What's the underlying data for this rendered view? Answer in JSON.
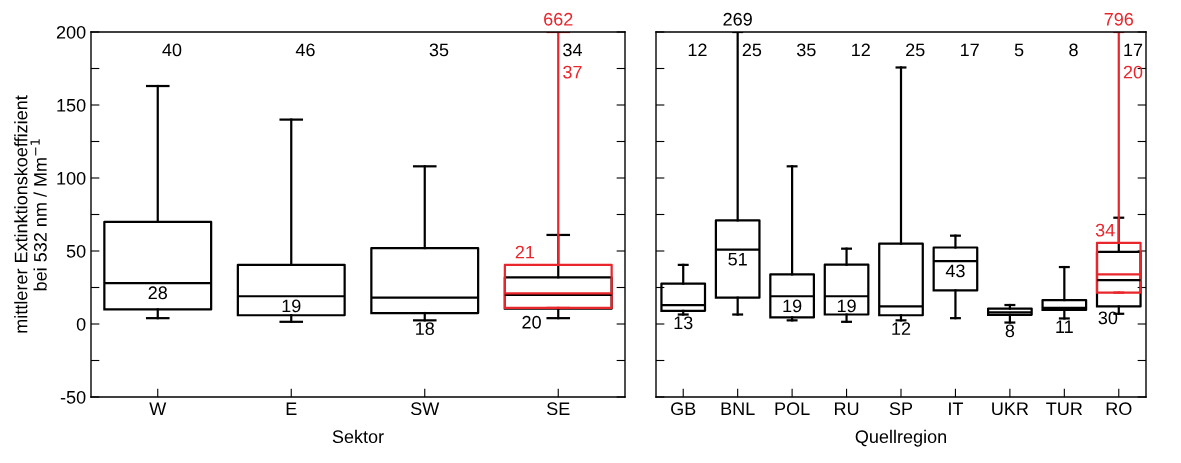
{
  "chart_data": [
    {
      "type": "box",
      "xlabel": "Sektor",
      "ylabel": "mittlerer Extinktionskoeffizient\nbei 532 nm / Mm$^{−1}$",
      "categories": [
        "W",
        "E",
        "SW",
        "SE"
      ],
      "ylim": [
        -50,
        200
      ],
      "yticks": [
        {
          "value": -50,
          "label": "-50"
        },
        {
          "value": -25,
          "label": null
        },
        0,
        {
          "value": 25,
          "label": null
        },
        50,
        {
          "value": 75,
          "label": null
        },
        100,
        {
          "value": 125,
          "label": null
        },
        150,
        {
          "value": 175,
          "label": null
        },
        200
      ],
      "grid": false,
      "series": [
        {
          "color": "#000000",
          "boxes": [
            {
              "low": 4,
              "q1": 10,
              "median": 28,
              "q3": 70,
              "high": 163
            },
            {
              "low": 1.5,
              "q1": 6,
              "median": 19,
              "q3": 40.5,
              "high": 140
            },
            {
              "low": 2.5,
              "q1": 7.5,
              "median": 18,
              "q3": 52,
              "high": 108
            },
            {
              "low": 4,
              "q1": 10.5,
              "median": 20,
              "q3": 32,
              "high": 61
            }
          ],
          "value_labels": [
            "40",
            "46",
            "35",
            "34"
          ]
        },
        {
          "color": "#e8262b",
          "boxes": [
            null,
            null,
            null,
            {
              "low": 11,
              "q1": 11,
              "median": 21,
              "q3": 40.5,
              "high": null
            }
          ],
          "value_labels": [
            null,
            null,
            null,
            "37"
          ]
        }
      ],
      "annotations": [
        {
          "text": "28",
          "x": "W",
          "y": 28
        },
        {
          "text": "19",
          "x": "E",
          "y": 19
        },
        {
          "text": "18",
          "x": "SW",
          "y": 18
        },
        {
          "text": "20",
          "x": "SE",
          "y": 20
        },
        {
          "text": "21",
          "x": "SE",
          "y": 21
        },
        {
          "text": "662",
          "x": "SE"
        }
      ]
    },
    {
      "type": "box",
      "xlabel": "Quellregion",
      "categories": [
        "GB",
        "BNL",
        "POL",
        "RU",
        "SP",
        "IT",
        "UKR",
        "TUR",
        "RO"
      ],
      "ylim": [
        -50,
        200
      ],
      "yticks": [
        -50,
        -25,
        0,
        25,
        50,
        75,
        100,
        125,
        150,
        175,
        200
      ],
      "tick_labels": "x",
      "grid": false,
      "series": [
        {
          "color": "#000000",
          "boxes": [
            {
              "low": 6.5,
              "q1": 9,
              "median": 13,
              "q3": 27.7,
              "high": 40.5
            },
            {
              "low": 6.5,
              "q1": 18,
              "median": 51,
              "q3": 71,
              "high": null
            },
            {
              "low": 2.5,
              "q1": 4.5,
              "median": 19,
              "q3": 34,
              "high": 108
            },
            {
              "low": 1.5,
              "q1": 6.5,
              "median": 19,
              "q3": 40.6,
              "high": 51.6
            },
            {
              "low": 2.5,
              "q1": 6,
              "median": 12,
              "q3": 55,
              "high": 175.7
            },
            {
              "low": 4,
              "q1": 23,
              "median": 43,
              "q3": 52.4,
              "high": 60.5
            },
            {
              "low": 1,
              "q1": 6.3,
              "median": 8,
              "q3": 10.6,
              "high": 13
            },
            {
              "low": 3.8,
              "q1": 9.6,
              "median": 11,
              "q3": 16.4,
              "high": 39
            },
            {
              "low": 7,
              "q1": 12,
              "median": 30,
              "q3": 49.4,
              "high": 72.8
            }
          ],
          "value_labels": [
            "12",
            "25",
            "35",
            "12",
            "25",
            "17",
            "5",
            "8",
            "17"
          ]
        },
        {
          "color": "#e8262b",
          "boxes": [
            null,
            null,
            null,
            null,
            null,
            null,
            null,
            null,
            {
              "low": 21.5,
              "q1": 21.5,
              "median": 34,
              "q3": 55.6,
              "high": null
            }
          ],
          "value_labels": [
            null,
            null,
            null,
            null,
            null,
            null,
            null,
            null,
            "20"
          ]
        }
      ],
      "annotations": [
        {
          "text": "13",
          "x": "GB",
          "y": 13
        },
        {
          "text": "51",
          "x": "BNL",
          "y": 51
        },
        {
          "text": "19",
          "x": "POL",
          "y": 19
        },
        {
          "text": "19",
          "x": "RU",
          "y": 19
        },
        {
          "text": "12",
          "x": "SP",
          "y": 12
        },
        {
          "text": "43",
          "x": "IT",
          "y": 43
        },
        {
          "text": "8",
          "x": "UKR",
          "y": 8
        },
        {
          "text": "11",
          "x": "TUR",
          "y": 11
        },
        {
          "text": "30",
          "x": "RO",
          "y": 30
        },
        {
          "text": "34",
          "x": "RO",
          "y": 34
        },
        {
          "text": "269",
          "x": "BNL"
        },
        {
          "text": "796",
          "x": "RO"
        }
      ]
    }
  ]
}
